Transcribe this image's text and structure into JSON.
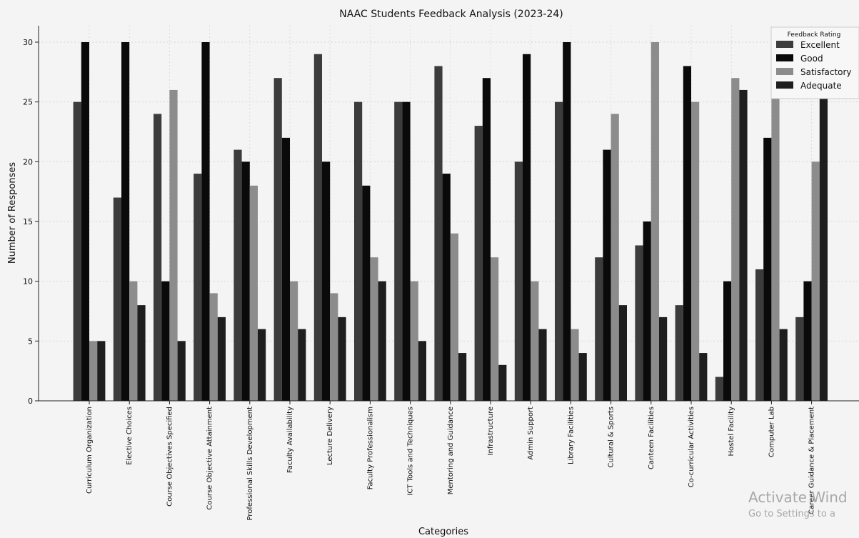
{
  "chart_data": {
    "type": "bar",
    "title": "NAAC Students Feedback Analysis (2023-24)",
    "xlabel": "Categories",
    "ylabel": "Number of Responses",
    "ylim": [
      0,
      31.5
    ],
    "yticks": [
      0,
      5,
      10,
      15,
      20,
      25,
      30
    ],
    "grid": true,
    "legend_title": "Feedback Rating",
    "legend_position": "top-right",
    "categories": [
      "Curriculum Organization",
      "Elective Choices",
      "Course Objectives Specified",
      "Course Objective Attainment",
      "Professional Skills Development",
      "Faculty Availability",
      "Lecture Delivery",
      "Faculty Professionalism",
      "ICT Tools and Techniques",
      "Mentoring and Guidance",
      "Infrastructure",
      "Admin Support",
      "Library Facilities",
      "Cultural & Sports",
      "Canteen Facilities",
      "Co-curricular Activities",
      "Hostel Facility",
      "Computer Lab",
      "Career Guidance & Placement"
    ],
    "series": [
      {
        "name": "Excellent",
        "color": "#3c3c3c",
        "values": [
          25,
          17,
          24,
          19,
          21,
          27,
          29,
          25,
          25,
          28,
          23,
          20,
          25,
          12,
          13,
          8,
          2,
          11,
          7
        ]
      },
      {
        "name": "Good",
        "color": "#0a0a0a",
        "values": [
          30,
          30,
          10,
          30,
          20,
          22,
          20,
          18,
          25,
          19,
          27,
          29,
          30,
          21,
          15,
          28,
          10,
          22,
          10
        ]
      },
      {
        "name": "Satisfactory",
        "color": "#8c8c8c",
        "values": [
          5,
          10,
          26,
          9,
          18,
          10,
          9,
          12,
          10,
          14,
          12,
          10,
          6,
          24,
          30,
          25,
          27,
          26,
          20
        ]
      },
      {
        "name": "Adequate",
        "color": "#1e1e1e",
        "values": [
          5,
          8,
          5,
          7,
          6,
          6,
          7,
          10,
          5,
          4,
          3,
          6,
          4,
          8,
          7,
          4,
          26,
          6,
          26
        ]
      }
    ]
  },
  "watermark": {
    "line1": "Activate Wind",
    "line2": "Go to Settings to a"
  }
}
